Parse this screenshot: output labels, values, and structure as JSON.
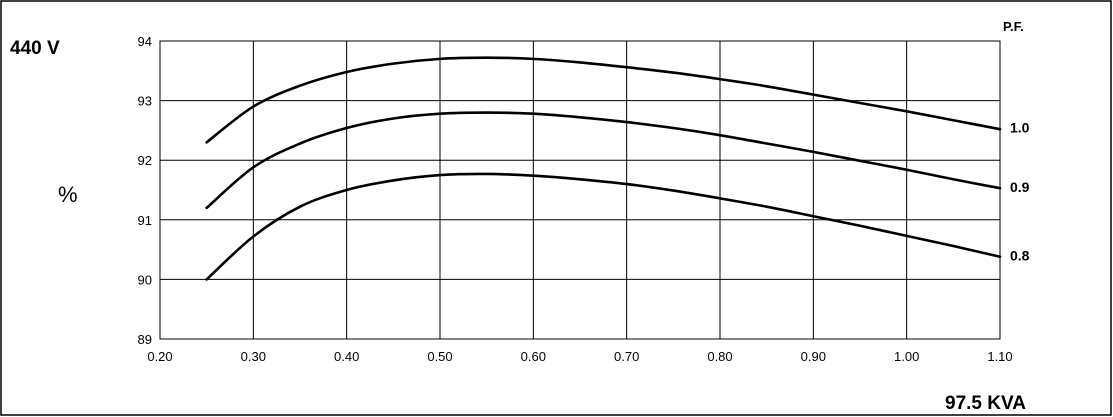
{
  "chart_data": {
    "type": "line",
    "voltage_label": "440 V",
    "ylabel": "%",
    "xlabel": "97.5 KVA",
    "legend_title": "P.F.",
    "xlim": [
      0.2,
      1.1
    ],
    "ylim": [
      89,
      94
    ],
    "x_ticks": [
      "0.20",
      "0.30",
      "0.40",
      "0.50",
      "0.60",
      "0.70",
      "0.80",
      "0.90",
      "1.00",
      "1.10"
    ],
    "y_ticks": [
      "94",
      "93",
      "92",
      "91",
      "90",
      "89"
    ],
    "x_tick_values": [
      0.2,
      0.3,
      0.4,
      0.5,
      0.6,
      0.7,
      0.8,
      0.9,
      1.0,
      1.1
    ],
    "y_tick_values": [
      94,
      93,
      92,
      91,
      90,
      89
    ],
    "grid": true,
    "series": [
      {
        "name": "1.0",
        "x": [
          0.25,
          0.3,
          0.35,
          0.4,
          0.45,
          0.5,
          0.55,
          0.6,
          0.65,
          0.7,
          0.75,
          0.8,
          0.85,
          0.9,
          0.95,
          1.0,
          1.05,
          1.1
        ],
        "y": [
          92.3,
          92.9,
          93.25,
          93.48,
          93.62,
          93.7,
          93.72,
          93.7,
          93.64,
          93.56,
          93.47,
          93.36,
          93.24,
          93.1,
          92.96,
          92.82,
          92.67,
          92.52
        ]
      },
      {
        "name": "0.9",
        "x": [
          0.25,
          0.3,
          0.35,
          0.4,
          0.45,
          0.5,
          0.55,
          0.6,
          0.65,
          0.7,
          0.75,
          0.8,
          0.85,
          0.9,
          0.95,
          1.0,
          1.05,
          1.1
        ],
        "y": [
          91.2,
          91.88,
          92.28,
          92.54,
          92.7,
          92.78,
          92.8,
          92.78,
          92.72,
          92.64,
          92.54,
          92.42,
          92.28,
          92.14,
          91.99,
          91.84,
          91.68,
          91.53
        ]
      },
      {
        "name": "0.8",
        "x": [
          0.25,
          0.3,
          0.35,
          0.4,
          0.45,
          0.5,
          0.55,
          0.6,
          0.65,
          0.7,
          0.75,
          0.8,
          0.85,
          0.9,
          0.95,
          1.0,
          1.05,
          1.1
        ],
        "y": [
          90.0,
          90.72,
          91.22,
          91.5,
          91.66,
          91.75,
          91.77,
          91.74,
          91.68,
          91.6,
          91.49,
          91.36,
          91.22,
          91.06,
          90.9,
          90.73,
          90.56,
          90.38
        ]
      }
    ],
    "curve_labels_y": [
      92.55,
      91.55,
      90.4
    ],
    "colors": {
      "line": "#000000",
      "grid": "#000000",
      "background": "#ffffff"
    }
  }
}
